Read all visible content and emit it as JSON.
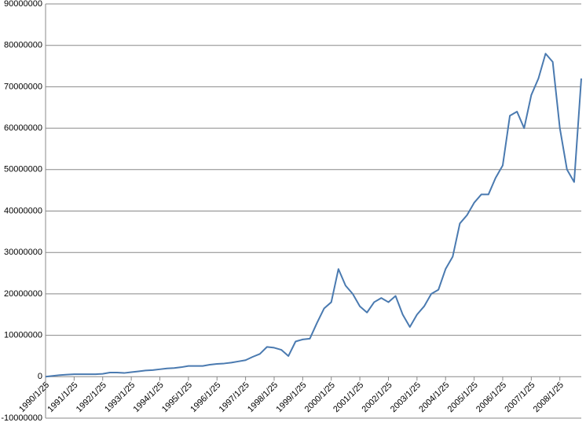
{
  "chart_data": {
    "type": "line",
    "categories": [
      "1990/1/25",
      null,
      null,
      null,
      "1991/1/25",
      null,
      null,
      null,
      "1992/1/25",
      null,
      null,
      null,
      "1993/1/25",
      null,
      null,
      null,
      "1994/1/25",
      null,
      null,
      null,
      "1995/1/25",
      null,
      null,
      null,
      "1996/1/25",
      null,
      null,
      null,
      "1997/1/25",
      null,
      null,
      null,
      "1998/1/25",
      null,
      null,
      null,
      "1999/1/25",
      null,
      null,
      null,
      "2000/1/25",
      null,
      null,
      null,
      "2001/1/25",
      null,
      null,
      null,
      "2002/1/25",
      null,
      null,
      null,
      "2003/1/25",
      null,
      null,
      null,
      "2004/1/25",
      null,
      null,
      null,
      "2005/1/25",
      null,
      null,
      null,
      "2006/1/25",
      null,
      null,
      null,
      "2007/1/25",
      null,
      null,
      null,
      "2008/1/25",
      null,
      null,
      null
    ],
    "series": [
      {
        "color": "#4a7ab0",
        "values": [
          0,
          200000,
          400000,
          500000,
          600000,
          600000,
          600000,
          600000,
          700000,
          1000000,
          1000000,
          900000,
          1100000,
          1300000,
          1500000,
          1600000,
          1800000,
          2000000,
          2100000,
          2300000,
          2600000,
          2600000,
          2600000,
          2900000,
          3100000,
          3200000,
          3400000,
          3700000,
          4000000,
          4800000,
          5500000,
          7200000,
          7000000,
          6500000,
          5000000,
          8500000,
          9000000,
          9200000,
          13000000,
          16500000,
          18000000,
          26000000,
          22000000,
          20000000,
          17000000,
          15500000,
          18000000,
          19000000,
          18000000,
          19500000,
          15000000,
          12000000,
          15000000,
          17000000,
          20000000,
          21000000,
          26000000,
          29000000,
          37000000,
          39000000,
          42000000,
          44000000,
          44000000,
          48000000,
          51000000,
          63000000,
          64000000,
          60000000,
          68000000,
          72000000,
          78000000,
          76000000,
          60000000,
          50000000,
          47000000,
          72000000
        ]
      }
    ],
    "ylim": [
      -10000000,
      90000000
    ],
    "yticks": [
      -10000000,
      0,
      10000000,
      20000000,
      30000000,
      40000000,
      50000000,
      60000000,
      70000000,
      80000000,
      90000000
    ],
    "grid": true
  }
}
